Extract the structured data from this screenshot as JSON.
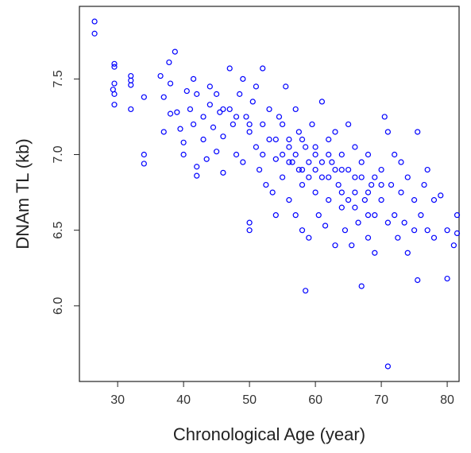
{
  "chart_data": {
    "type": "scatter",
    "x_label": "Chronological Age (year)",
    "y_label": "DNAm TL (kb)",
    "color": "#0000ff",
    "xlim": [
      24.2,
      81.8
    ],
    "xticks": [
      30,
      40,
      50,
      60,
      70,
      80
    ],
    "ylim": [
      5.5,
      7.98
    ],
    "yticks": [
      {
        "value": 6.0,
        "label": "6.0"
      },
      6.5,
      {
        "value": 7.0,
        "label": "7.0"
      },
      7.5
    ],
    "x": [
      26.5,
      26.5,
      29.5,
      29.5,
      29.5,
      29.3,
      29.5,
      29.5,
      32,
      32,
      32,
      32,
      34,
      34,
      34,
      36.5,
      37,
      37,
      37.8,
      38,
      38.7,
      38,
      39,
      39.5,
      40,
      40,
      40.5,
      41,
      41.5,
      41.5,
      42,
      42,
      42,
      43,
      43,
      43.5,
      44,
      44,
      44.5,
      45,
      45,
      45.5,
      46,
      46,
      47,
      47,
      47.5,
      48,
      48.5,
      49,
      49,
      49.5,
      50,
      50,
      50,
      50.5,
      51,
      51,
      51.5,
      52,
      52,
      52.5,
      53,
      53,
      53.5,
      54,
      54,
      54.5,
      55,
      55,
      55.5,
      56,
      56,
      56.5,
      57,
      57,
      57.5,
      57.5,
      58,
      58,
      58.5,
      58.5,
      59,
      59,
      59.5,
      60,
      60,
      60.5,
      61,
      61,
      61.5,
      62,
      62,
      62.5,
      63,
      63,
      63.5,
      64,
      64,
      64.5,
      65,
      65,
      65.5,
      66,
      66,
      66.5,
      67,
      67,
      67.5,
      68,
      68,
      68.5,
      69,
      69,
      70,
      70,
      70.5,
      71,
      71,
      71,
      71.5,
      72,
      72,
      72.5,
      73,
      73,
      73.5,
      74,
      74,
      75,
      75,
      75.5,
      75.5,
      76,
      76.5,
      77,
      77,
      78,
      78,
      79,
      80,
      80,
      81,
      81.5,
      81.5,
      55,
      56,
      57,
      58,
      59,
      60,
      61,
      62,
      63,
      64,
      65,
      66,
      67,
      68,
      69,
      58,
      60,
      62,
      64,
      66,
      68,
      70,
      56,
      54,
      52,
      50,
      48,
      46
    ],
    "values": [
      7.88,
      7.8,
      7.6,
      7.58,
      7.47,
      7.43,
      7.4,
      7.33,
      7.52,
      7.49,
      7.46,
      7.3,
      7.38,
      7.0,
      6.94,
      7.52,
      7.38,
      7.15,
      7.61,
      7.47,
      7.68,
      7.27,
      7.28,
      7.17,
      7.08,
      7.0,
      7.42,
      7.3,
      7.5,
      7.2,
      7.4,
      6.92,
      6.86,
      7.25,
      7.1,
      6.97,
      7.45,
      7.33,
      7.18,
      7.4,
      7.02,
      7.28,
      6.88,
      7.12,
      7.57,
      7.3,
      7.2,
      7.0,
      7.4,
      7.5,
      6.95,
      7.25,
      6.55,
      6.5,
      7.15,
      7.35,
      7.05,
      7.45,
      6.9,
      7.57,
      7.2,
      6.8,
      7.1,
      7.3,
      6.75,
      6.97,
      6.6,
      7.25,
      7.0,
      6.85,
      7.45,
      7.1,
      6.7,
      6.95,
      7.3,
      6.6,
      6.9,
      7.15,
      6.5,
      6.8,
      6.1,
      7.05,
      6.95,
      6.45,
      7.2,
      6.75,
      7.0,
      6.6,
      7.35,
      6.85,
      6.53,
      7.1,
      6.7,
      6.95,
      6.4,
      7.15,
      6.8,
      6.65,
      7.0,
      6.5,
      6.9,
      7.2,
      6.4,
      6.75,
      7.05,
      6.55,
      6.13,
      6.85,
      6.7,
      6.45,
      7.0,
      6.8,
      6.6,
      6.35,
      6.9,
      6.7,
      7.25,
      5.6,
      6.55,
      7.15,
      6.8,
      6.6,
      7.0,
      6.45,
      6.75,
      6.95,
      6.55,
      6.85,
      6.35,
      6.7,
      6.5,
      6.17,
      7.15,
      6.6,
      6.8,
      6.5,
      6.9,
      6.7,
      6.45,
      6.73,
      6.18,
      6.5,
      6.4,
      6.48,
      6.6,
      7.2,
      6.95,
      7.0,
      7.1,
      6.85,
      7.05,
      6.95,
      6.85,
      6.9,
      6.75,
      6.7,
      6.85,
      6.95,
      6.75,
      6.85,
      6.9,
      6.9,
      7.0,
      6.9,
      6.65,
      6.6,
      6.8,
      7.05,
      7.1,
      7.0,
      7.2,
      7.25,
      7.3
    ]
  }
}
